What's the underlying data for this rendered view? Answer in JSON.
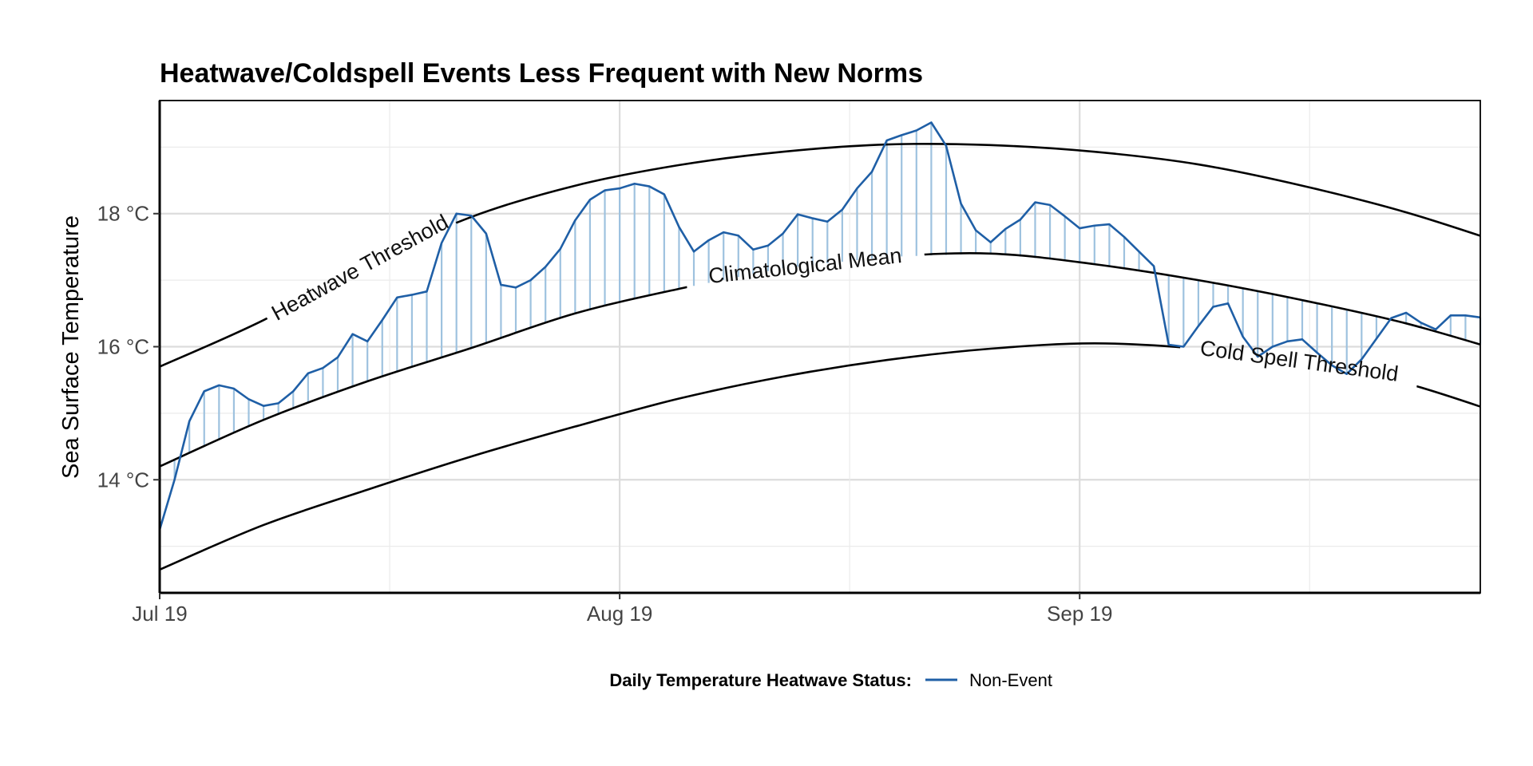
{
  "chart_data": {
    "type": "line",
    "title": "Heatwave/Coldspell Events Less Frequent with New Norms",
    "ylabel": "Sea Surface Temperature",
    "xlabel": "",
    "x_start": "2019-07-01",
    "x_end": "2019-09-28",
    "ylim": [
      12.3,
      19.7
    ],
    "y_ticks": [
      14,
      16,
      18
    ],
    "y_tick_labels": [
      "14 °C",
      "16 °C",
      "18 °C"
    ],
    "x_ticks": [
      "2019-07-01",
      "2019-08-01",
      "2019-09-01"
    ],
    "x_tick_labels": [
      "Jul 19",
      "Aug 19",
      "Sep 19"
    ],
    "grid": true,
    "legend": {
      "position": "bottom",
      "title": "Daily Temperature Heatwave Status:",
      "entries": [
        {
          "label": "Non-Event",
          "color": "#1f5fa6"
        }
      ]
    },
    "colors": {
      "observed": "#1f5fa6",
      "segments": "#9ec2df",
      "reference": "#000000"
    },
    "curve_labels": {
      "heatwave": "Heatwave Threshold",
      "mean": "Climatological Mean",
      "coldspell": "Cold Spell Threshold"
    },
    "series": [
      {
        "name": "Daily Temperature",
        "dates": [
          "2019-07-01",
          "2019-07-02",
          "2019-07-03",
          "2019-07-04",
          "2019-07-05",
          "2019-07-06",
          "2019-07-07",
          "2019-07-08",
          "2019-07-09",
          "2019-07-10",
          "2019-07-11",
          "2019-07-12",
          "2019-07-13",
          "2019-07-14",
          "2019-07-15",
          "2019-07-16",
          "2019-07-17",
          "2019-07-18",
          "2019-07-19",
          "2019-07-20",
          "2019-07-21",
          "2019-07-22",
          "2019-07-23",
          "2019-07-24",
          "2019-07-25",
          "2019-07-26",
          "2019-07-27",
          "2019-07-28",
          "2019-07-29",
          "2019-07-30",
          "2019-07-31",
          "2019-08-01",
          "2019-08-02",
          "2019-08-03",
          "2019-08-04",
          "2019-08-05",
          "2019-08-06",
          "2019-08-07",
          "2019-08-08",
          "2019-08-09",
          "2019-08-10",
          "2019-08-11",
          "2019-08-12",
          "2019-08-13",
          "2019-08-14",
          "2019-08-15",
          "2019-08-16",
          "2019-08-17",
          "2019-08-18",
          "2019-08-19",
          "2019-08-20",
          "2019-08-21",
          "2019-08-22",
          "2019-08-23",
          "2019-08-24",
          "2019-08-25",
          "2019-08-26",
          "2019-08-27",
          "2019-08-28",
          "2019-08-29",
          "2019-08-30",
          "2019-08-31",
          "2019-09-01",
          "2019-09-02",
          "2019-09-03",
          "2019-09-04",
          "2019-09-05",
          "2019-09-06",
          "2019-09-07",
          "2019-09-08",
          "2019-09-09",
          "2019-09-10",
          "2019-09-11",
          "2019-09-12",
          "2019-09-13",
          "2019-09-14",
          "2019-09-15",
          "2019-09-16",
          "2019-09-17",
          "2019-09-18",
          "2019-09-19",
          "2019-09-20",
          "2019-09-21",
          "2019-09-22",
          "2019-09-23",
          "2019-09-24",
          "2019-09-25",
          "2019-09-26",
          "2019-09-27",
          "2019-09-28",
          "2019-09-29",
          "2019-09-30"
        ],
        "values": [
          13.25,
          14.0,
          14.88,
          15.33,
          15.42,
          15.37,
          15.21,
          15.11,
          15.15,
          15.33,
          15.6,
          15.68,
          15.84,
          16.19,
          16.08,
          16.4,
          16.74,
          16.78,
          16.83,
          17.56,
          18.0,
          17.97,
          17.7,
          16.93,
          16.89,
          17.0,
          17.2,
          17.47,
          17.9,
          18.21,
          18.35,
          18.38,
          18.45,
          18.41,
          18.29,
          17.8,
          17.43,
          17.6,
          17.72,
          17.67,
          17.46,
          17.52,
          17.7,
          17.99,
          17.93,
          17.88,
          18.06,
          18.38,
          18.63,
          19.1,
          19.18,
          19.25,
          19.37,
          19.02,
          18.15,
          17.75,
          17.57,
          17.77,
          17.91,
          18.17,
          18.13,
          17.96,
          17.78,
          17.82,
          17.84,
          17.65,
          17.43,
          17.21,
          16.03,
          16.0,
          16.31,
          16.6,
          16.65,
          16.15,
          15.85,
          16.0,
          16.08,
          16.11,
          15.91,
          15.72,
          15.59,
          15.81,
          16.12,
          16.43,
          16.51,
          16.36,
          16.26,
          16.47,
          16.47,
          16.44,
          16.45,
          16.22
        ]
      },
      {
        "name": "Heatwave Threshold",
        "dates": [
          "2019-07-01",
          "2019-07-08",
          "2019-07-15",
          "2019-07-22",
          "2019-07-29",
          "2019-08-05",
          "2019-08-12",
          "2019-08-19",
          "2019-08-26",
          "2019-09-02",
          "2019-09-09",
          "2019-09-16",
          "2019-09-23",
          "2019-09-30"
        ],
        "values": [
          15.7,
          16.4,
          17.25,
          17.95,
          18.42,
          18.73,
          18.93,
          19.04,
          19.03,
          18.93,
          18.74,
          18.42,
          18.02,
          17.52
        ]
      },
      {
        "name": "Climatological Mean",
        "dates": [
          "2019-07-01",
          "2019-07-08",
          "2019-07-15",
          "2019-07-22",
          "2019-07-29",
          "2019-08-05",
          "2019-08-12",
          "2019-08-19",
          "2019-08-26",
          "2019-09-02",
          "2019-09-09",
          "2019-09-16",
          "2019-09-23",
          "2019-09-30"
        ],
        "values": [
          14.2,
          14.9,
          15.48,
          15.98,
          16.5,
          16.87,
          17.18,
          17.35,
          17.4,
          17.24,
          17.0,
          16.7,
          16.35,
          15.9
        ]
      },
      {
        "name": "Cold Spell Threshold",
        "dates": [
          "2019-07-01",
          "2019-07-08",
          "2019-07-15",
          "2019-07-22",
          "2019-07-29",
          "2019-08-05",
          "2019-08-12",
          "2019-08-19",
          "2019-08-26",
          "2019-09-02",
          "2019-09-09",
          "2019-09-16",
          "2019-09-23",
          "2019-09-30"
        ],
        "values": [
          12.65,
          13.32,
          13.85,
          14.35,
          14.8,
          15.22,
          15.55,
          15.8,
          15.97,
          16.05,
          15.97,
          15.78,
          15.45,
          14.95
        ]
      }
    ]
  }
}
